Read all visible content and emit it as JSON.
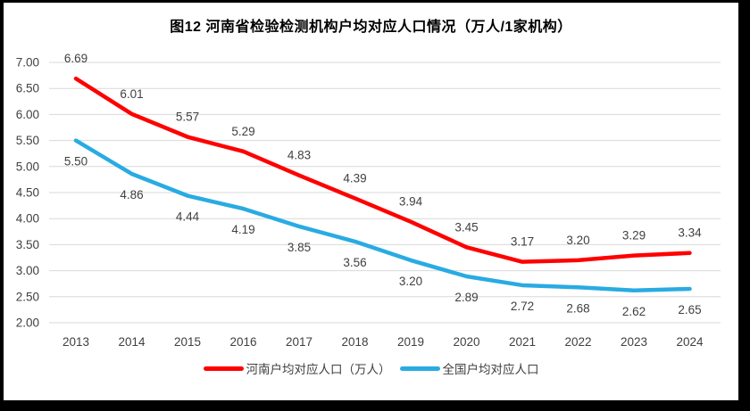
{
  "title": "图12  河南省检验检测机构户均对应人口情况（万人/1家机构）",
  "frame": {
    "border_color": "#000000",
    "panel_background": "#ffffff"
  },
  "chart_data": {
    "type": "line",
    "title": "图12  河南省检验检测机构户均对应人口情况（万人/1家机构）",
    "categories": [
      "2013",
      "2014",
      "2015",
      "2016",
      "2017",
      "2018",
      "2019",
      "2020",
      "2021",
      "2022",
      "2023",
      "2024"
    ],
    "series": [
      {
        "name": "河南户均对应人口（万人）",
        "color": "#FF0000",
        "label_position": "above",
        "values": [
          6.69,
          6.01,
          5.57,
          5.29,
          4.83,
          4.39,
          3.94,
          3.45,
          3.17,
          3.2,
          3.29,
          3.34
        ]
      },
      {
        "name": "全国户均对应人口",
        "color": "#29ABE2",
        "label_position": "below",
        "values": [
          5.5,
          4.86,
          4.44,
          4.19,
          3.85,
          3.56,
          3.2,
          2.89,
          2.72,
          2.68,
          2.62,
          2.65
        ]
      }
    ],
    "xlabel": "",
    "ylabel": "",
    "ylim": [
      2.0,
      7.0
    ],
    "ytick_step": 0.5,
    "ytick_labels": [
      "7.00",
      "6.50",
      "6.00",
      "5.50",
      "5.00",
      "4.50",
      "4.00",
      "3.50",
      "3.00",
      "2.50",
      "2.00"
    ],
    "value_label_format": "0.00",
    "grid": true,
    "gridline_color": "#D9D9D9",
    "tick_label_color": "#404040",
    "data_label_color": "#404040",
    "legend_position": "bottom"
  }
}
